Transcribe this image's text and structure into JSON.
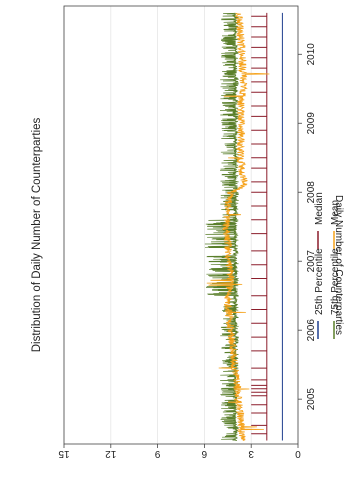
{
  "chart_data": {
    "type": "line",
    "orientation": "rotated-90-ccw",
    "title": "Distribution of Daily Number of Counterparties",
    "xlabel": "",
    "ylabel": "Daily Number of Counterparties",
    "xlim": [
      2004.35,
      2010.7
    ],
    "ylim": [
      0,
      15
    ],
    "x_ticks": [
      "2005",
      "2006",
      "2007",
      "2008",
      "2009",
      "2010"
    ],
    "y_ticks": [
      "0",
      "3",
      "6",
      "9",
      "12",
      "15"
    ],
    "grid": true,
    "legend_position": "bottom",
    "series": [
      {
        "name": "25th Percentile",
        "color": "#1f3f8f",
        "baseline": 1,
        "points": [
          [
            2004.4,
            1
          ],
          [
            2010.6,
            1
          ]
        ]
      },
      {
        "name": "Median",
        "color": "#8b1c2a",
        "baseline": 2,
        "spikes_to": 3,
        "points": [
          [
            2004.4,
            2
          ],
          [
            2010.6,
            2
          ]
        ],
        "spike_dates": [
          2004.5,
          2004.62,
          2004.8,
          2004.92,
          2005.05,
          2005.1,
          2005.15,
          2005.2,
          2005.28,
          2005.45,
          2005.7,
          2005.9,
          2006.1,
          2006.3,
          2006.5,
          2006.75,
          2006.95,
          2007.15,
          2007.4,
          2007.6,
          2007.8,
          2008.0,
          2008.15,
          2008.35,
          2008.5,
          2008.7,
          2008.9,
          2009.1,
          2009.25,
          2009.45,
          2009.6,
          2009.8,
          2009.95,
          2010.1,
          2010.25,
          2010.4,
          2010.55
        ]
      },
      {
        "name": "75th Percentile",
        "color": "#5a7f2b",
        "baseline": 4,
        "spike_ranges": [
          [
            2004.4,
            2005.3,
            5
          ],
          [
            2005.3,
            2006.5,
            5
          ],
          [
            2006.5,
            2007.6,
            6
          ],
          [
            2007.6,
            2008.0,
            5
          ],
          [
            2008.0,
            2008.4,
            5
          ],
          [
            2008.4,
            2009.6,
            5
          ],
          [
            2009.6,
            2010.6,
            5
          ]
        ]
      },
      {
        "name": "Mean",
        "color": "#f5a21b",
        "points": [
          [
            2004.4,
            3.6
          ],
          [
            2004.8,
            3.7
          ],
          [
            2005.2,
            3.9
          ],
          [
            2005.6,
            4.1
          ],
          [
            2006.0,
            4.3
          ],
          [
            2006.4,
            4.5
          ],
          [
            2006.8,
            4.3
          ],
          [
            2007.2,
            4.5
          ],
          [
            2007.5,
            4.6
          ],
          [
            2007.8,
            4.5
          ],
          [
            2008.0,
            4.3
          ],
          [
            2008.1,
            3.4
          ],
          [
            2008.3,
            3.6
          ],
          [
            2008.6,
            3.7
          ],
          [
            2008.9,
            3.6
          ],
          [
            2009.2,
            3.7
          ],
          [
            2009.6,
            3.5
          ],
          [
            2010.0,
            3.6
          ],
          [
            2010.3,
            3.7
          ],
          [
            2010.6,
            3.8
          ]
        ]
      }
    ]
  }
}
